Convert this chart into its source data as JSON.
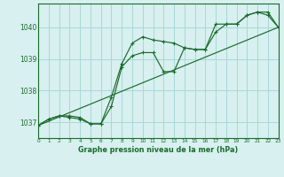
{
  "title": "Graphe pression niveau de la mer (hPa)",
  "background_color": "#d8f0f0",
  "grid_color": "#a8d8d8",
  "line_color": "#1a6b2a",
  "x_min": 0,
  "x_max": 23,
  "y_min": 1036.5,
  "y_max": 1040.75,
  "y_ticks": [
    1037,
    1038,
    1039,
    1040
  ],
  "x_ticks": [
    0,
    1,
    2,
    3,
    4,
    5,
    6,
    7,
    8,
    9,
    10,
    11,
    12,
    13,
    14,
    15,
    16,
    17,
    18,
    19,
    20,
    21,
    22,
    23
  ],
  "series1_x": [
    0,
    1,
    2,
    3,
    4,
    5,
    6,
    7,
    8,
    9,
    10,
    11,
    12,
    13,
    14,
    15,
    16,
    17,
    18,
    19,
    20,
    21,
    22,
    23
  ],
  "series1_y": [
    1036.9,
    1037.1,
    1037.2,
    1037.2,
    1037.15,
    1036.95,
    1036.95,
    1037.8,
    1038.85,
    1039.5,
    1039.7,
    1039.6,
    1039.55,
    1039.5,
    1039.35,
    1039.3,
    1039.3,
    1039.85,
    1040.1,
    1040.1,
    1040.38,
    1040.48,
    1040.48,
    1040.0
  ],
  "series2_x": [
    0,
    1,
    2,
    3,
    4,
    5,
    6,
    7,
    8,
    9,
    10,
    11,
    12,
    13,
    14,
    15,
    16,
    17,
    18,
    19,
    20,
    21,
    22,
    23
  ],
  "series2_y": [
    1036.9,
    1037.1,
    1037.2,
    1037.15,
    1037.1,
    1036.95,
    1036.95,
    1037.5,
    1038.75,
    1039.1,
    1039.2,
    1039.2,
    1038.6,
    1038.6,
    1039.35,
    1039.3,
    1039.3,
    1040.1,
    1040.1,
    1040.1,
    1040.38,
    1040.48,
    1040.38,
    1040.0
  ],
  "series3_x": [
    0,
    23
  ],
  "series3_y": [
    1036.9,
    1040.0
  ]
}
